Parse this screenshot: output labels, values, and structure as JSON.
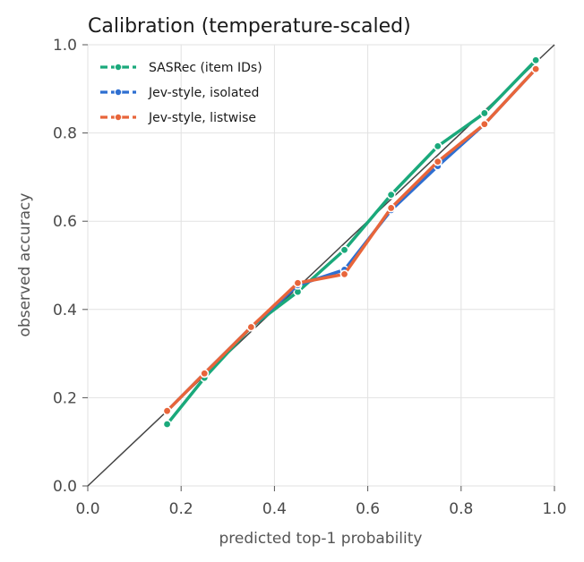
{
  "chart_data": {
    "type": "line",
    "title": "Calibration (temperature-scaled)",
    "xlabel": "predicted top-1 probability",
    "ylabel": "observed accuracy",
    "xlim": [
      0.0,
      1.0
    ],
    "ylim": [
      0.0,
      1.0
    ],
    "xticks": [
      "0.0",
      "0.2",
      "0.4",
      "0.6",
      "0.8",
      "1.0"
    ],
    "yticks": [
      "0.0",
      "0.2",
      "0.4",
      "0.6",
      "0.8",
      "1.0"
    ],
    "grid": true,
    "legend_position": "top-left",
    "reference_line": {
      "from": [
        0,
        0
      ],
      "to": [
        1,
        1
      ],
      "color": "#444444"
    },
    "series": [
      {
        "name": "SASRec (item IDs)",
        "color": "#1aa97b",
        "x": [
          0.17,
          0.25,
          0.35,
          0.45,
          0.55,
          0.65,
          0.75,
          0.85,
          0.96
        ],
        "y": [
          0.14,
          0.245,
          0.36,
          0.44,
          0.535,
          0.66,
          0.77,
          0.845,
          0.965
        ]
      },
      {
        "name": "Jev-style, isolated",
        "color": "#2e6fd1",
        "x": [
          0.17,
          0.25,
          0.35,
          0.45,
          0.55,
          0.65,
          0.75,
          0.85,
          0.96
        ],
        "y": [
          0.17,
          0.255,
          0.36,
          0.455,
          0.49,
          0.625,
          0.725,
          0.82,
          0.945
        ]
      },
      {
        "name": "Jev-style, listwise",
        "color": "#e8653a",
        "x": [
          0.17,
          0.25,
          0.35,
          0.45,
          0.55,
          0.65,
          0.75,
          0.85,
          0.96
        ],
        "y": [
          0.17,
          0.255,
          0.36,
          0.46,
          0.48,
          0.63,
          0.735,
          0.82,
          0.945
        ]
      }
    ]
  }
}
